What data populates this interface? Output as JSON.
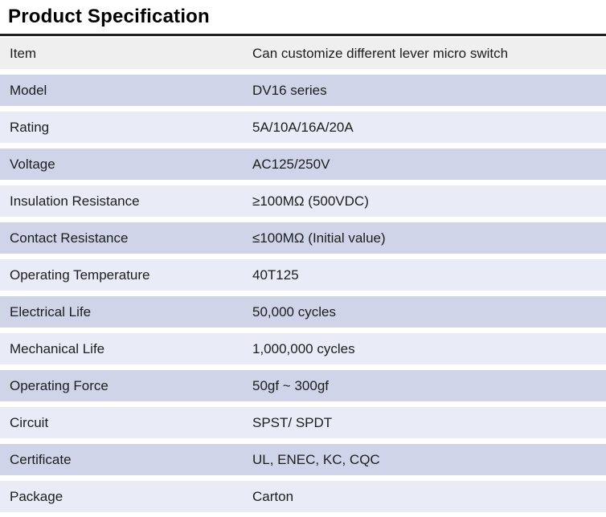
{
  "title": "Product Specification",
  "colors": {
    "title_text": "#000000",
    "body_text": "#1d1d1f",
    "rule": "#1f1f1f",
    "row_gray": "#efefef",
    "row_dark": "#cfd4e8",
    "row_light": "#e9ebf6",
    "gap": "#ffffff"
  },
  "table": {
    "rows": [
      {
        "label": "Item",
        "value": "Can customize different lever micro switch",
        "shade": "gray"
      },
      {
        "label": "Model",
        "value": "DV16 series",
        "shade": "dark"
      },
      {
        "label": "Rating",
        "value": "5A/10A/16A/20A",
        "shade": "light"
      },
      {
        "label": "Voltage",
        "value": "AC125/250V",
        "shade": "dark"
      },
      {
        "label": "Insulation Resistance",
        "value": "≥100MΩ (500VDC)",
        "shade": "light"
      },
      {
        "label": "Contact Resistance",
        "value": "≤100MΩ (Initial value)",
        "shade": "dark"
      },
      {
        "label": "Operating Temperature",
        "value": "40T125",
        "shade": "light"
      },
      {
        "label": "Electrical Life",
        "value": "50,000 cycles",
        "shade": "dark"
      },
      {
        "label": "Mechanical Life",
        "value": "1,000,000 cycles",
        "shade": "light"
      },
      {
        "label": "Operating Force",
        "value": "50gf ~ 300gf",
        "shade": "dark"
      },
      {
        "label": "Circuit",
        "value": "SPST/ SPDT",
        "shade": "light"
      },
      {
        "label": "Certificate",
        "value": "UL, ENEC, KC, CQC",
        "shade": "dark"
      },
      {
        "label": "Package",
        "value": "Carton",
        "shade": "light"
      }
    ]
  }
}
